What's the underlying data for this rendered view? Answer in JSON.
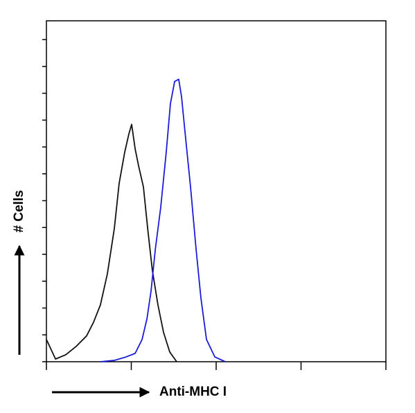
{
  "chart_data": {
    "type": "line",
    "xlabel": "Anti-MHC I",
    "ylabel": "# Cells",
    "xscale": "log",
    "xlim": [
      1,
      10000
    ],
    "xticks": [
      1,
      10,
      100,
      1000,
      10000
    ],
    "ylim": [
      0,
      12.7
    ],
    "yticks": [
      0,
      1,
      2,
      3,
      4,
      5,
      6,
      7,
      8,
      9,
      10,
      11,
      12
    ],
    "series": [
      {
        "color": "#111111",
        "x": [
          1,
          1.28,
          1.69,
          2.24,
          2.97,
          3.59,
          4.33,
          5.23,
          6.31,
          7.19,
          8.36,
          9.36,
          10.1,
          11.1,
          12.2,
          13.9,
          15.6,
          17.7,
          20.6,
          24.0,
          28.4,
          34.3
        ],
        "values": [
          0.83,
          0.1,
          0.26,
          0.57,
          0.96,
          1.47,
          2.12,
          3.28,
          4.96,
          6.64,
          7.8,
          8.48,
          8.84,
          7.93,
          7.29,
          6.51,
          4.96,
          3.41,
          2.12,
          1.09,
          0.36,
          0
        ]
      },
      {
        "color": "#1a1adb",
        "x": [
          4.33,
          6.31,
          8.36,
          11.1,
          13.4,
          15.3,
          17.1,
          19.2,
          22.2,
          25.8,
          28.9,
          32.4,
          36.2,
          39.1,
          43.7,
          49.9,
          58.0,
          66.1,
          76.9,
          96.4,
          128
        ],
        "values": [
          0,
          0.05,
          0.16,
          0.31,
          0.83,
          1.6,
          2.64,
          4.19,
          5.74,
          7.8,
          9.61,
          10.44,
          10.52,
          9.87,
          8.32,
          6.51,
          4.19,
          2.38,
          0.83,
          0.18,
          0
        ]
      }
    ]
  }
}
